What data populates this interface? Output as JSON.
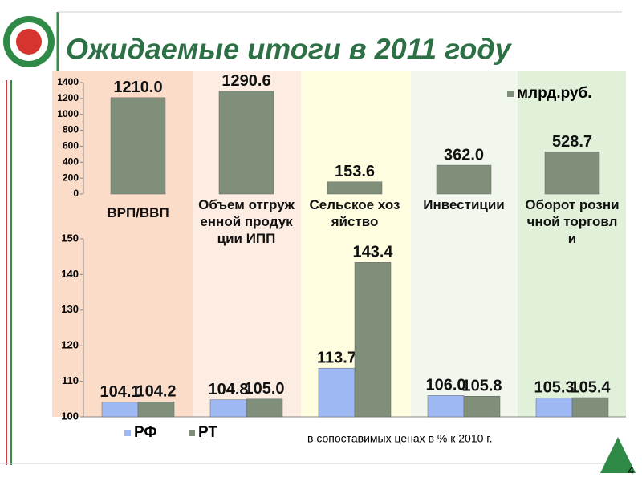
{
  "title": "Ожидаемые итоги в 2011 году",
  "page_number": "4",
  "note": "в сопоставимых ценах в % к 2010 г.",
  "chart_data": [
    {
      "type": "bar",
      "categories": [
        "ВРП/ВВП",
        "Объем отгруженной продукции ИПП",
        "Сельское хозяйство",
        "Инвестиции",
        "Оборот розничной торговли"
      ],
      "series": [
        {
          "name": "млрд.руб.",
          "color": "#7f8f7a",
          "values": [
            1210.0,
            1290.6,
            153.6,
            362.0,
            528.7
          ],
          "value_labels": [
            "1210.0",
            "1290.6",
            "153.6",
            "362.0",
            "528.7"
          ]
        }
      ],
      "ylim": [
        0,
        1400
      ],
      "yticks": [
        0,
        200,
        400,
        600,
        800,
        1000,
        1200,
        1400
      ],
      "legend": "top-right"
    },
    {
      "type": "bar",
      "series": [
        {
          "name": "РФ",
          "color": "#9db8f2",
          "values": [
            104.1,
            104.8,
            113.7,
            106.0,
            105.3
          ],
          "value_labels": [
            "104.1",
            "104.8",
            "113.7",
            "106.0",
            "105.3"
          ]
        },
        {
          "name": "РТ",
          "color": "#7f8f7a",
          "values": [
            104.2,
            105.0,
            143.4,
            105.8,
            105.4
          ],
          "value_labels": [
            "104.2",
            "105.0",
            "143.4",
            "105.8",
            "105.4"
          ]
        }
      ],
      "ylim": [
        100,
        150
      ],
      "yticks": [
        100,
        110,
        120,
        130,
        140,
        150
      ],
      "legend": "bottom-left"
    }
  ]
}
